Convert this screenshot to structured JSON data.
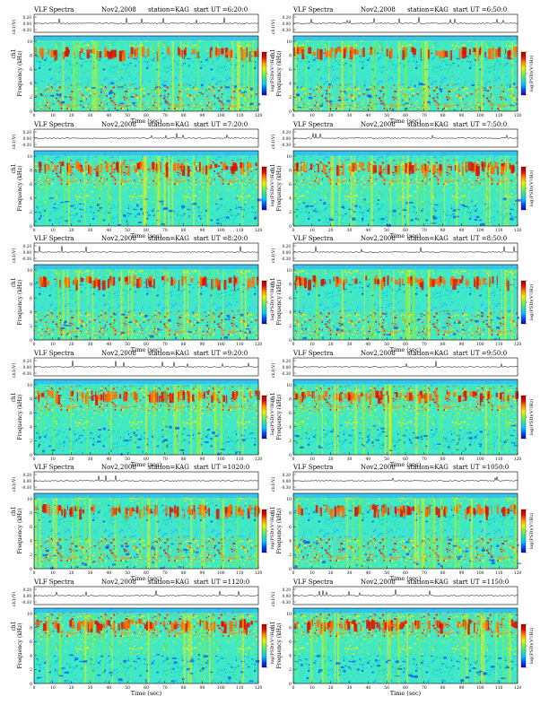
{
  "header_labels": {
    "title": "VLF Spectra",
    "date": "Nov2,2008",
    "station": "station=KAG",
    "start_prefix": "start  UT"
  },
  "axis_labels": {
    "time": "Time (sec)",
    "frequency": "Frequency (kHz)",
    "channel_prefix": "ch1",
    "amplitude": "ch1(V)",
    "colorbar": "log(PSD)(V²/Hz)"
  },
  "colorbar_colors": [
    "#2000a0",
    "#0050ff",
    "#00c8ff",
    "#30e0a0",
    "#80f040",
    "#f0f000",
    "#ff9000",
    "#e01000",
    "#b00000"
  ],
  "chart_data": [
    {
      "type": "heatmap",
      "start_time": "=6:20:0",
      "x_ticks": [
        0,
        10,
        20,
        30,
        40,
        50,
        60,
        70,
        80,
        90,
        100,
        110,
        120
      ],
      "y_ticks": [
        0,
        2,
        4,
        6,
        8,
        10
      ],
      "amp_ticks": [
        "0.20",
        "0.00",
        "-0.30"
      ],
      "xlim": [
        0,
        120
      ],
      "ylim": [
        0,
        10
      ]
    },
    {
      "type": "heatmap",
      "start_time": "=6:50:0",
      "x_ticks": [
        0,
        10,
        20,
        30,
        40,
        50,
        60,
        70,
        80,
        90,
        100,
        110,
        120
      ],
      "y_ticks": [
        0,
        2,
        4,
        6,
        8,
        10
      ],
      "amp_ticks": [
        "0.20",
        "0.00",
        "-0.30"
      ],
      "xlim": [
        0,
        120
      ],
      "ylim": [
        0,
        10
      ]
    },
    {
      "type": "heatmap",
      "start_time": "=7:20:0",
      "x_ticks": [
        0,
        10,
        20,
        30,
        40,
        50,
        60,
        70,
        80,
        90,
        100,
        110,
        120
      ],
      "y_ticks": [
        0,
        2,
        4,
        6,
        8,
        10
      ],
      "amp_ticks": [
        "0.20",
        "0.00",
        "-0.30"
      ],
      "xlim": [
        0,
        120
      ],
      "ylim": [
        0,
        10
      ]
    },
    {
      "type": "heatmap",
      "start_time": "=7:50:0",
      "x_ticks": [
        0,
        10,
        20,
        30,
        40,
        50,
        60,
        70,
        80,
        90,
        100,
        110,
        120
      ],
      "y_ticks": [
        0,
        2,
        4,
        6,
        8,
        10
      ],
      "amp_ticks": [
        "0.20",
        "0.00",
        "-0.30"
      ],
      "xlim": [
        0,
        120
      ],
      "ylim": [
        0,
        10
      ]
    },
    {
      "type": "heatmap",
      "start_time": "=8:20:0",
      "x_ticks": [
        0,
        10,
        20,
        30,
        40,
        50,
        60,
        70,
        80,
        90,
        100,
        110,
        120
      ],
      "y_ticks": [
        0,
        2,
        4,
        6,
        8,
        10
      ],
      "amp_ticks": [
        "0.20",
        "0.00",
        "-0.30"
      ],
      "xlim": [
        0,
        120
      ],
      "ylim": [
        0,
        10
      ]
    },
    {
      "type": "heatmap",
      "start_time": "=8:50:0",
      "x_ticks": [
        0,
        10,
        20,
        30,
        40,
        50,
        60,
        70,
        80,
        90,
        100,
        110,
        120
      ],
      "y_ticks": [
        0,
        2,
        4,
        6,
        8,
        10
      ],
      "amp_ticks": [
        "0.20",
        "0.00",
        "-0.30"
      ],
      "xlim": [
        0,
        120
      ],
      "ylim": [
        0,
        10
      ]
    },
    {
      "type": "heatmap",
      "start_time": "=9:20:0",
      "x_ticks": [
        0,
        10,
        20,
        30,
        40,
        50,
        60,
        70,
        80,
        90,
        100,
        110,
        120
      ],
      "y_ticks": [
        0,
        2,
        4,
        6,
        8,
        10
      ],
      "amp_ticks": [
        "0.20",
        "0.00",
        "-0.30"
      ],
      "xlim": [
        0,
        120
      ],
      "ylim": [
        0,
        10
      ]
    },
    {
      "type": "heatmap",
      "start_time": "=9:50:0",
      "x_ticks": [
        0,
        10,
        20,
        30,
        40,
        50,
        60,
        70,
        80,
        90,
        100,
        110,
        120
      ],
      "y_ticks": [
        0,
        2,
        4,
        6,
        8,
        10
      ],
      "amp_ticks": [
        "0.20",
        "0.00",
        "-0.30"
      ],
      "xlim": [
        0,
        120
      ],
      "ylim": [
        0,
        10
      ]
    },
    {
      "type": "heatmap",
      "start_time": "=1020:0",
      "x_ticks": [
        0,
        10,
        20,
        30,
        40,
        50,
        60,
        70,
        80,
        90,
        100,
        110,
        120
      ],
      "y_ticks": [
        0,
        2,
        4,
        6,
        8,
        10
      ],
      "amp_ticks": [
        "0.20",
        "0.00",
        "-0.30"
      ],
      "xlim": [
        0,
        120
      ],
      "ylim": [
        0,
        10
      ]
    },
    {
      "type": "heatmap",
      "start_time": "=1050:0",
      "x_ticks": [
        0,
        10,
        20,
        30,
        40,
        50,
        60,
        70,
        80,
        90,
        100,
        110,
        120
      ],
      "y_ticks": [
        0,
        2,
        4,
        6,
        8,
        10
      ],
      "amp_ticks": [
        "0.20",
        "0.00",
        "-0.30"
      ],
      "xlim": [
        0,
        120
      ],
      "ylim": [
        0,
        10
      ]
    },
    {
      "type": "heatmap",
      "start_time": "=1120:0",
      "x_ticks": [
        0,
        10,
        20,
        30,
        40,
        50,
        60,
        70,
        80,
        90,
        100,
        110,
        120
      ],
      "y_ticks": [
        0,
        2,
        4,
        6,
        8,
        10
      ],
      "amp_ticks": [
        "0.20",
        "0.00",
        "-0.30"
      ],
      "xlim": [
        0,
        120
      ],
      "ylim": [
        0,
        10
      ]
    },
    {
      "type": "heatmap",
      "start_time": "=1150:0",
      "x_ticks": [
        0,
        10,
        20,
        30,
        40,
        50,
        60,
        70,
        80,
        90,
        100,
        110,
        120
      ],
      "y_ticks": [
        0,
        2,
        4,
        6,
        8,
        10
      ],
      "amp_ticks": [
        "0.20",
        "0.00",
        "-0.30"
      ],
      "xlim": [
        0,
        120
      ],
      "ylim": [
        0,
        10
      ]
    }
  ]
}
